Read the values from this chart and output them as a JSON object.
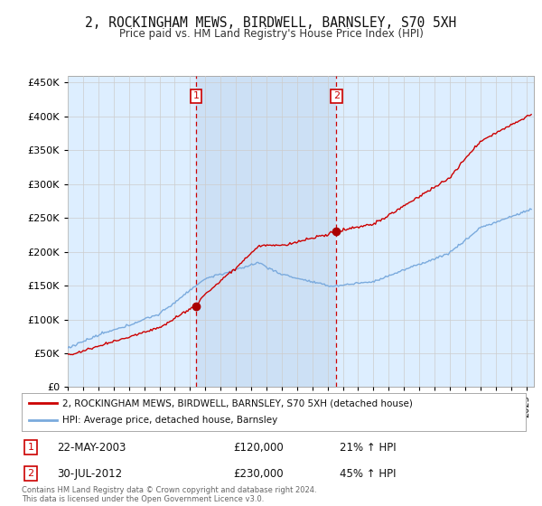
{
  "title": "2, ROCKINGHAM MEWS, BIRDWELL, BARNSLEY, S70 5XH",
  "subtitle": "Price paid vs. HM Land Registry's House Price Index (HPI)",
  "ylim": [
    0,
    460000
  ],
  "yticks": [
    0,
    50000,
    100000,
    150000,
    200000,
    250000,
    300000,
    350000,
    400000,
    450000
  ],
  "xlim_start": 1995.0,
  "xlim_end": 2025.5,
  "sale1_date": 2003.39,
  "sale1_price": 120000,
  "sale1_label": "1",
  "sale1_date_str": "22-MAY-2003",
  "sale1_pct": "21% ↑ HPI",
  "sale2_date": 2012.58,
  "sale2_price": 230000,
  "sale2_label": "2",
  "sale2_date_str": "30-JUL-2012",
  "sale2_pct": "45% ↑ HPI",
  "property_line_color": "#cc0000",
  "hpi_line_color": "#7aaadd",
  "bg_color": "#ddeeff",
  "shade_color": "#cce0f5",
  "plot_bg": "#ffffff",
  "grid_color": "#cccccc",
  "sale_marker_color": "#aa0000",
  "vline_color": "#cc0000",
  "box_edge_color": "#cc0000",
  "footer_text": "Contains HM Land Registry data © Crown copyright and database right 2024.\nThis data is licensed under the Open Government Licence v3.0.",
  "legend_property": "2, ROCKINGHAM MEWS, BIRDWELL, BARNSLEY, S70 5XH (detached house)",
  "legend_hpi": "HPI: Average price, detached house, Barnsley"
}
